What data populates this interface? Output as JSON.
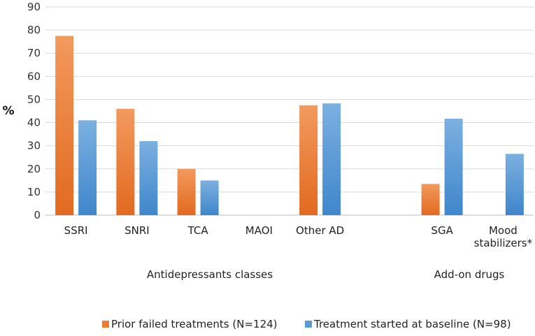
{
  "chart_data": {
    "type": "bar",
    "ylabel": "%",
    "ylim": [
      0,
      90
    ],
    "yticks": [
      "0",
      "10",
      "20",
      "30",
      "40",
      "50",
      "60",
      "70",
      "80",
      "90"
    ],
    "grid": true,
    "categories": [
      {
        "lines": [
          "SSRI"
        ]
      },
      {
        "lines": [
          "SNRI"
        ]
      },
      {
        "lines": [
          "TCA"
        ]
      },
      {
        "lines": [
          "MAOI"
        ]
      },
      {
        "lines": [
          "Other AD"
        ]
      },
      {
        "lines": [
          ""
        ]
      },
      {
        "lines": [
          "SGA"
        ]
      },
      {
        "lines": [
          "Mood",
          "stabilizers*"
        ]
      }
    ],
    "series": [
      {
        "name": "Prior failed treatments (N=124)",
        "color": "#ED7D31",
        "values": [
          77.5,
          46,
          20,
          0,
          47.5,
          null,
          13.5,
          null
        ]
      },
      {
        "name": "Treatment started at baseline (N=98)",
        "color": "#5B9BD5",
        "values": [
          41,
          32,
          15,
          0,
          48.3,
          null,
          41.7,
          26.5
        ]
      }
    ],
    "groups": [
      {
        "label": "Antidepressants classes"
      },
      {
        "label": "Add-on drugs"
      }
    ],
    "legend_position": "bottom"
  }
}
